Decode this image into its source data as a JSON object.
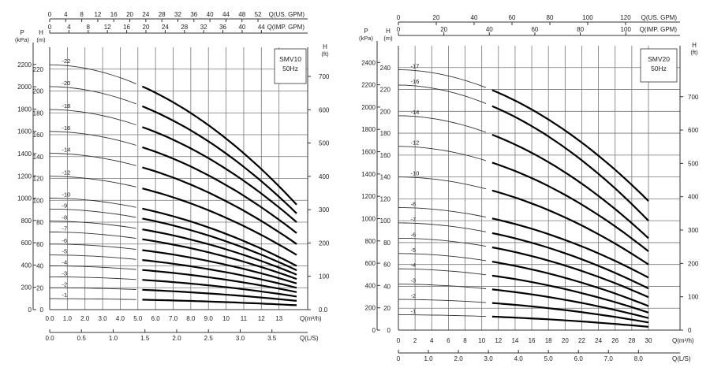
{
  "chart_data": [
    {
      "type": "line",
      "model": "SMV10",
      "frequency": "50Hz",
      "x_m3h_ticks": [
        "0.0",
        "1.0",
        "2.0",
        "3.0",
        "4.0",
        "5.0",
        "6.0",
        "7.0",
        "8.0",
        "9.0",
        "10",
        "11",
        "12",
        "13"
      ],
      "x_m3h_label": "Q(m³/h)",
      "x_m3h_range": [
        0,
        14
      ],
      "x_ls_ticks": [
        "0.0",
        "0.5",
        "1.0",
        "1.5",
        "2.0",
        "2.5",
        "3.0",
        "3.5"
      ],
      "x_ls_values": [
        0,
        0.5,
        1.0,
        1.5,
        2.0,
        2.5,
        3.0,
        3.5
      ],
      "x_ls_label": "Q(L/S)",
      "usgpm_ticks": [
        "0",
        "4",
        "8",
        "12",
        "16",
        "20",
        "24",
        "28",
        "32",
        "36",
        "40",
        "44",
        "48",
        "52"
      ],
      "usgpm_values": [
        0,
        4,
        8,
        12,
        16,
        20,
        24,
        28,
        32,
        36,
        40,
        44,
        48,
        52
      ],
      "usgpm_label": "Q(US. GPM)",
      "impgpm_ticks": [
        "0",
        "4",
        "8",
        "12",
        "16",
        "20",
        "24",
        "28",
        "32",
        "36",
        "40",
        "44"
      ],
      "impgpm_values": [
        0,
        4,
        8,
        12,
        16,
        20,
        24,
        28,
        32,
        36,
        40,
        44
      ],
      "impgpm_label": "Q(IMP. GPM)",
      "head_m_ticks": [
        "0",
        "20",
        "40",
        "60",
        "80",
        "100",
        "120",
        "140",
        "160",
        "180",
        "200",
        "220"
      ],
      "head_m_values": [
        0,
        20,
        40,
        60,
        80,
        100,
        120,
        140,
        160,
        180,
        200,
        220
      ],
      "head_m_label": [
        "H",
        "(m)"
      ],
      "head_m_range": [
        0,
        240
      ],
      "kpa_ticks": [
        "0",
        "200",
        "400",
        "600",
        "800",
        "1000",
        "1200",
        "1400",
        "1600",
        "1800",
        "2000",
        "2200"
      ],
      "kpa_values": [
        0,
        200,
        400,
        600,
        800,
        1000,
        1200,
        1400,
        1600,
        1800,
        2000,
        2200
      ],
      "kpa_label": [
        "P",
        "(kPa)"
      ],
      "ft_ticks": [
        "0.0",
        "100",
        "200",
        "300",
        "400",
        "500",
        "600",
        "700"
      ],
      "ft_values": [
        0,
        100,
        200,
        300,
        400,
        500,
        600,
        700
      ],
      "ft_label": [
        "H",
        "(ft)"
      ],
      "curve_x_range": [
        0,
        14
      ],
      "bold_from_x": 5,
      "series": [
        {
          "name": "1",
          "shutoff": 10,
          "at_max": 4
        },
        {
          "name": "2",
          "shutoff": 20,
          "at_max": 8
        },
        {
          "name": "3",
          "shutoff": 30,
          "at_max": 12
        },
        {
          "name": "4",
          "shutoff": 40,
          "at_max": 16
        },
        {
          "name": "5",
          "shutoff": 50,
          "at_max": 20
        },
        {
          "name": "6",
          "shutoff": 60,
          "at_max": 24
        },
        {
          "name": "7",
          "shutoff": 71,
          "at_max": 28
        },
        {
          "name": "8",
          "shutoff": 81,
          "at_max": 32
        },
        {
          "name": "9",
          "shutoff": 92,
          "at_max": 36
        },
        {
          "name": "10",
          "shutoff": 102,
          "at_max": 40
        },
        {
          "name": "12",
          "shutoff": 122,
          "at_max": 50
        },
        {
          "name": "14",
          "shutoff": 143,
          "at_max": 60
        },
        {
          "name": "16",
          "shutoff": 163,
          "at_max": 70
        },
        {
          "name": "18",
          "shutoff": 183,
          "at_max": 80
        },
        {
          "name": "20",
          "shutoff": 204,
          "at_max": 88
        },
        {
          "name": "22",
          "shutoff": 224,
          "at_max": 96
        }
      ]
    },
    {
      "type": "line",
      "model": "SMV20",
      "frequency": "50Hz",
      "x_m3h_ticks": [
        "0",
        "2",
        "4",
        "6",
        "8",
        "10",
        "12",
        "14",
        "16",
        "18",
        "20",
        "22",
        "24",
        "26",
        "28",
        "30"
      ],
      "x_m3h_label": "Q(m³/h)",
      "x_m3h_range": [
        0,
        30
      ],
      "x_ls_ticks": [
        "0",
        "1.0",
        "2.0",
        "3.0",
        "4.0",
        "5.0",
        "6.0",
        "7.0",
        "8.0"
      ],
      "x_ls_values": [
        0,
        1,
        2,
        3,
        4,
        5,
        6,
        7,
        8
      ],
      "x_ls_label": "Q(L/S)",
      "usgpm_ticks": [
        "0",
        "20",
        "40",
        "60",
        "80",
        "100",
        "120"
      ],
      "usgpm_values": [
        0,
        20,
        40,
        60,
        80,
        100,
        120
      ],
      "usgpm_label": "Q(US. GPM)",
      "impgpm_ticks": [
        "0",
        "20",
        "40",
        "60",
        "80",
        "100"
      ],
      "impgpm_values": [
        0,
        20,
        40,
        60,
        80,
        100
      ],
      "impgpm_label": "Q(IMP. GPM)",
      "head_m_ticks": [
        "0",
        "20",
        "40",
        "60",
        "80",
        "100",
        "120",
        "140",
        "160",
        "180",
        "200",
        "220",
        "240"
      ],
      "head_m_values": [
        0,
        20,
        40,
        60,
        80,
        100,
        120,
        140,
        160,
        180,
        200,
        220,
        240
      ],
      "head_m_label": [
        "H",
        "(m)"
      ],
      "head_m_range": [
        0,
        260
      ],
      "kpa_ticks": [
        "0",
        "200",
        "400",
        "600",
        "800",
        "1000",
        "1200",
        "1400",
        "1600",
        "1800",
        "2000",
        "2200",
        "2400"
      ],
      "kpa_values": [
        0,
        200,
        400,
        600,
        800,
        1000,
        1200,
        1400,
        1600,
        1800,
        2000,
        2200,
        2400
      ],
      "kpa_label": [
        "P",
        "(kPa)"
      ],
      "ft_ticks": [
        "0",
        "100",
        "200",
        "300",
        "400",
        "500",
        "600",
        "700"
      ],
      "ft_values": [
        0,
        100,
        200,
        300,
        400,
        500,
        600,
        700
      ],
      "ft_label": [
        "H",
        "(ft)"
      ],
      "curve_x_range": [
        0,
        30
      ],
      "bold_from_x": 11,
      "series": [
        {
          "name": "1",
          "shutoff": 14,
          "at_max": 3
        },
        {
          "name": "2",
          "shutoff": 28,
          "at_max": 7
        },
        {
          "name": "3",
          "shutoff": 42,
          "at_max": 11
        },
        {
          "name": "4",
          "shutoff": 56,
          "at_max": 16
        },
        {
          "name": "5",
          "shutoff": 70,
          "at_max": 22
        },
        {
          "name": "6",
          "shutoff": 84,
          "at_max": 30
        },
        {
          "name": "7",
          "shutoff": 98,
          "at_max": 38
        },
        {
          "name": "8",
          "shutoff": 112,
          "at_max": 48
        },
        {
          "name": "10",
          "shutoff": 140,
          "at_max": 60
        },
        {
          "name": "12",
          "shutoff": 168,
          "at_max": 72
        },
        {
          "name": "14",
          "shutoff": 196,
          "at_max": 84
        },
        {
          "name": "16",
          "shutoff": 224,
          "at_max": 100
        },
        {
          "name": "17",
          "shutoff": 238,
          "at_max": 118
        }
      ]
    }
  ]
}
